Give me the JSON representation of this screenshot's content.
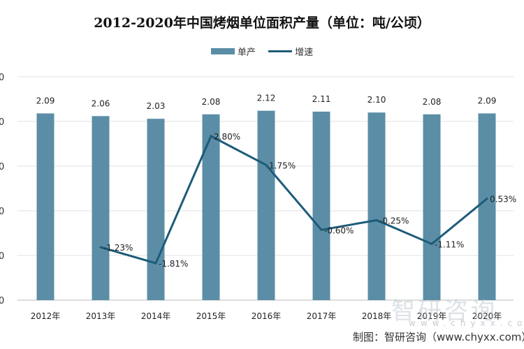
{
  "chart_data": {
    "type": "bar+line",
    "title": "2012-2020年中国烤烟单位面积产量（单位：吨/公顷）",
    "categories": [
      "2012年",
      "2013年",
      "2014年",
      "2015年",
      "2016年",
      "2017年",
      "2018年",
      "2019年",
      "2020年"
    ],
    "series": [
      {
        "name": "单产",
        "type": "bar",
        "axis": "left",
        "values": [
          2.09,
          2.06,
          2.03,
          2.08,
          2.12,
          2.11,
          2.1,
          2.08,
          2.09
        ],
        "labels": [
          "2.09",
          "2.06",
          "2.03",
          "2.08",
          "2.12",
          "2.11",
          "2.10",
          "2.08",
          "2.09"
        ],
        "color": "#5b8ea6"
      },
      {
        "name": "增速",
        "type": "line",
        "axis": "right",
        "values": [
          null,
          -1.23,
          -1.81,
          2.8,
          1.75,
          -0.6,
          -0.25,
          -1.11,
          0.53
        ],
        "labels": [
          "",
          "-1.23%",
          "-1.81%",
          "2.80%",
          "1.75%",
          "-0.60%",
          "-0.25%",
          "-1.11%",
          "0.53%"
        ],
        "color": "#1d5b79"
      }
    ],
    "ylim": [
      0,
      2.5
    ],
    "y_ticks_visible": [
      "0",
      "0",
      "0",
      "0",
      "0",
      "0"
    ],
    "grid": true,
    "legend": "top-center"
  },
  "watermark": "智研咨询",
  "watermark_sub": "www.chyxx.com",
  "source": "制图：智研咨询（www.chyxx.com）"
}
